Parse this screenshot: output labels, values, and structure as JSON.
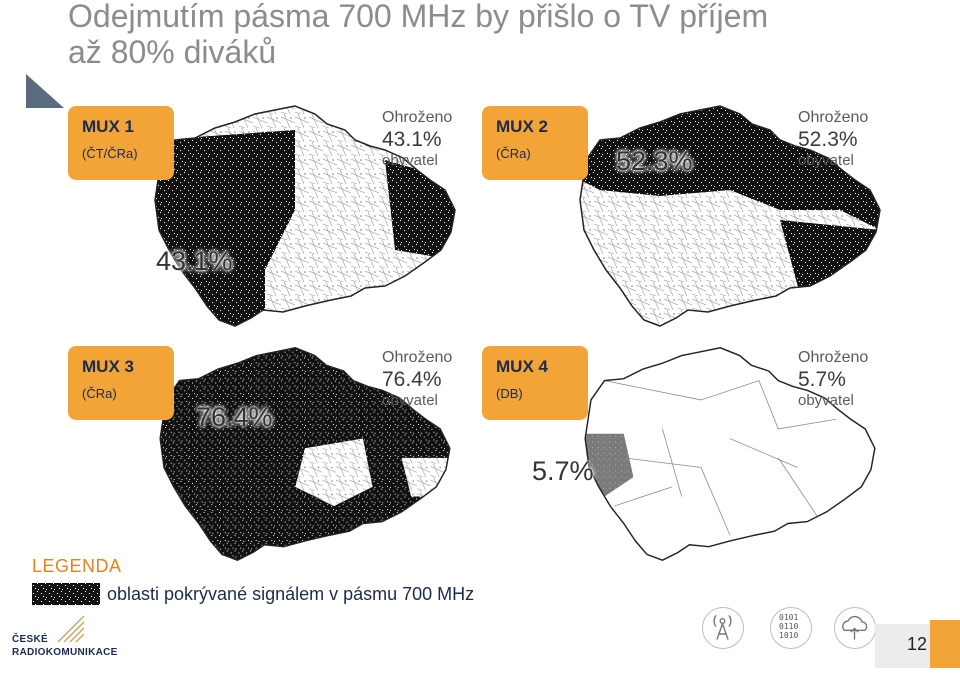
{
  "title": {
    "line1": "Odejmutím pásma 700 MHz by přišlo o TV příjem",
    "line2": "až 80% diváků"
  },
  "panels": [
    {
      "mux": "MUX 1",
      "operator": "(ČT/ČRa)",
      "label": "Ohroženo",
      "percent": "43.1%",
      "unit": "obyvatel",
      "map_percent": "43.1%"
    },
    {
      "mux": "MUX 2",
      "operator": "(ČRa)",
      "label": "Ohroženo",
      "percent": "52.3%",
      "unit": "obyvatel",
      "map_percent": "52.3%"
    },
    {
      "mux": "MUX 3",
      "operator": "(ČRa)",
      "label": "Ohroženo",
      "percent": "76.4%",
      "unit": "obyvatel",
      "map_percent": "76.4%"
    },
    {
      "mux": "MUX 4",
      "operator": "(DB)",
      "label": "Ohroženo",
      "percent": "5.7%",
      "unit": "obyvatel",
      "map_percent": "5.7%"
    }
  ],
  "legend": {
    "title": "LEGENDA",
    "text": "oblasti pokrývané signálem v pásmu 700 MHz"
  },
  "footer": {
    "logo_line1": "ČESKÉ",
    "logo_line2": "RADIOKOMUNIKACE",
    "binary": [
      "0101",
      "0110",
      "1010"
    ],
    "page_number": "12"
  },
  "colors": {
    "title": "#8c8c8c",
    "tag": "#f3a436",
    "tag_text": "#1b2a4e",
    "legend_title": "#e8821e",
    "coverage": "#000000",
    "coverage_mux4": "#8a8a8a"
  },
  "icons": [
    "antenna-icon",
    "binary-data-icon",
    "cloud-upload-icon"
  ]
}
